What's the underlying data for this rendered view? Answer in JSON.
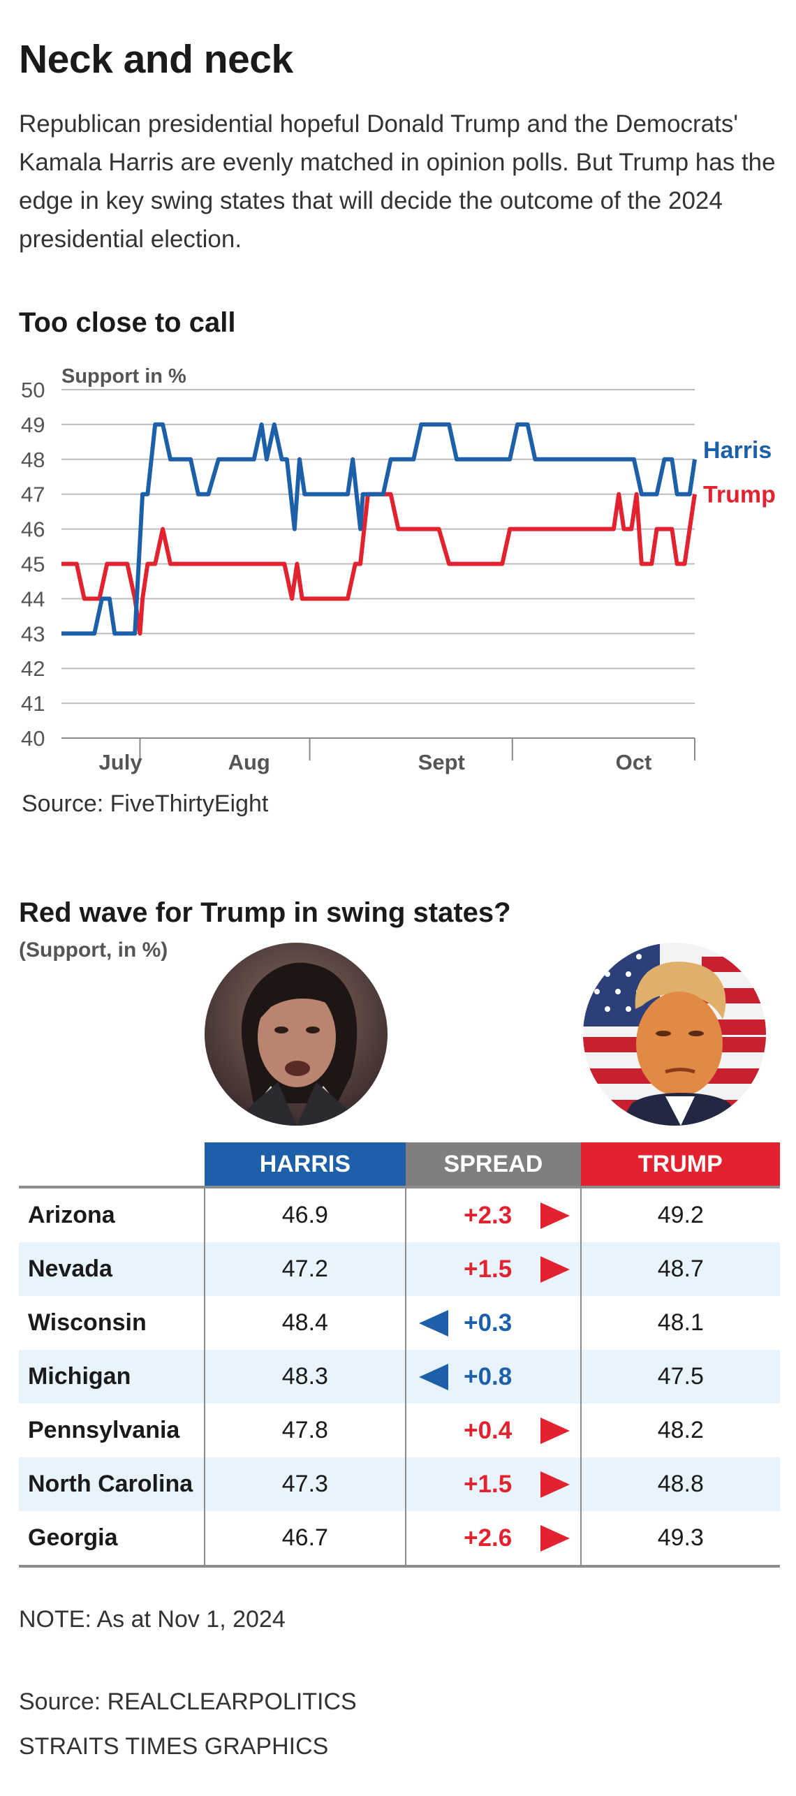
{
  "title": "Neck and neck",
  "dek": "Republican presidential hopeful Donald Trump and the Democrats' Kamala Harris are evenly matched in opinion polls. But Trump has the edge in key swing states that will decide the outcome of the 2024 presidential election.",
  "colors": {
    "harris": "#1d5fa8",
    "trump": "#e3222f",
    "spread": "#7f7f7f",
    "grid": "#bdbdbd",
    "alt_row": "#e9f3fb"
  },
  "chart_data": [
    {
      "type": "line",
      "title": "Too close to call",
      "ylabel": "Support in %",
      "xlabel": "",
      "ylim": [
        40,
        50
      ],
      "yticks": [
        "50",
        "49",
        "48",
        "47",
        "46",
        "45",
        "44",
        "43",
        "42",
        "41",
        "40"
      ],
      "xlim": [
        0,
        25
      ],
      "x_ticks": [
        3.1,
        9.8,
        17.8
      ],
      "x_labels": [
        {
          "label": "July",
          "x": 1.2
        },
        {
          "label": "Aug",
          "x": 6.3
        },
        {
          "label": "Sept",
          "x": 13.8
        },
        {
          "label": "Oct",
          "x": 21.6
        }
      ],
      "grid": true,
      "series": [
        {
          "name": "Harris",
          "label": "Harris",
          "points": [
            [
              0,
              43
            ],
            [
              1.3,
              43
            ],
            [
              1.6,
              44
            ],
            [
              1.9,
              44
            ],
            [
              2.1,
              43
            ],
            [
              2.9,
              43
            ],
            [
              3.2,
              47
            ],
            [
              3.4,
              47
            ],
            [
              3.7,
              49
            ],
            [
              4.0,
              49
            ],
            [
              4.3,
              48
            ],
            [
              5.1,
              48
            ],
            [
              5.4,
              47
            ],
            [
              5.8,
              47
            ],
            [
              6.2,
              48
            ],
            [
              7.6,
              48
            ],
            [
              7.9,
              49
            ],
            [
              8.1,
              48
            ],
            [
              8.4,
              49
            ],
            [
              8.7,
              48
            ],
            [
              8.9,
              48
            ],
            [
              9.2,
              46
            ],
            [
              9.4,
              48
            ],
            [
              9.6,
              47
            ],
            [
              11.3,
              47
            ],
            [
              11.5,
              48
            ],
            [
              11.8,
              46
            ],
            [
              11.9,
              47
            ],
            [
              12.7,
              47
            ],
            [
              13.0,
              48
            ],
            [
              13.9,
              48
            ],
            [
              14.2,
              49
            ],
            [
              15.3,
              49
            ],
            [
              15.6,
              48
            ],
            [
              17.7,
              48
            ],
            [
              18.0,
              49
            ],
            [
              18.4,
              49
            ],
            [
              18.7,
              48
            ],
            [
              22.6,
              48
            ],
            [
              22.9,
              47
            ],
            [
              23.5,
              47
            ],
            [
              23.8,
              48
            ],
            [
              24.1,
              48
            ],
            [
              24.3,
              47
            ],
            [
              24.8,
              47
            ],
            [
              25.0,
              48
            ]
          ]
        },
        {
          "name": "Trump",
          "label": "Trump",
          "points": [
            [
              0,
              45
            ],
            [
              0.6,
              45
            ],
            [
              0.9,
              44
            ],
            [
              1.5,
              44
            ],
            [
              1.8,
              45
            ],
            [
              2.6,
              45
            ],
            [
              2.9,
              44
            ],
            [
              3.1,
              43
            ],
            [
              3.2,
              44
            ],
            [
              3.4,
              45
            ],
            [
              3.7,
              45
            ],
            [
              4.0,
              46
            ],
            [
              4.3,
              45
            ],
            [
              8.8,
              45
            ],
            [
              9.1,
              44
            ],
            [
              9.3,
              45
            ],
            [
              9.5,
              44
            ],
            [
              11.3,
              44
            ],
            [
              11.6,
              45
            ],
            [
              11.8,
              45
            ],
            [
              12.1,
              47
            ],
            [
              13.0,
              47
            ],
            [
              13.3,
              46
            ],
            [
              14.9,
              46
            ],
            [
              15.3,
              45
            ],
            [
              17.4,
              45
            ],
            [
              17.7,
              46
            ],
            [
              21.8,
              46
            ],
            [
              22.0,
              47
            ],
            [
              22.2,
              46
            ],
            [
              22.5,
              46
            ],
            [
              22.7,
              47
            ],
            [
              22.9,
              45
            ],
            [
              23.3,
              45
            ],
            [
              23.5,
              46
            ],
            [
              24.1,
              46
            ],
            [
              24.3,
              45
            ],
            [
              24.6,
              45
            ],
            [
              24.8,
              46
            ],
            [
              25.0,
              47
            ]
          ]
        }
      ]
    },
    {
      "type": "table",
      "title": "Red wave for Trump in swing states?",
      "subtitle": "(Support, in %)",
      "columns": [
        "",
        "HARRIS",
        "SPREAD",
        "TRUMP"
      ],
      "rows": [
        {
          "state": "Arizona",
          "harris": "46.9",
          "spread": "+2.3",
          "leader": "trump",
          "trump": "49.2"
        },
        {
          "state": "Nevada",
          "harris": "47.2",
          "spread": "+1.5",
          "leader": "trump",
          "trump": "48.7"
        },
        {
          "state": "Wisconsin",
          "harris": "48.4",
          "spread": "+0.3",
          "leader": "harris",
          "trump": "48.1"
        },
        {
          "state": "Michigan",
          "harris": "48.3",
          "spread": "+0.8",
          "leader": "harris",
          "trump": "47.5"
        },
        {
          "state": "Pennsylvania",
          "harris": "47.8",
          "spread": "+0.4",
          "leader": "trump",
          "trump": "48.2"
        },
        {
          "state": "North Carolina",
          "harris": "47.3",
          "spread": "+1.5",
          "leader": "trump",
          "trump": "48.8"
        },
        {
          "state": "Georgia",
          "harris": "46.7",
          "spread": "+2.6",
          "leader": "trump",
          "trump": "49.3"
        }
      ]
    }
  ],
  "chart_source": "Source: FiveThirtyEight",
  "note": "NOTE: As at Nov 1, 2024",
  "table_source": "Source: REALCLEARPOLITICS",
  "credit": "STRAITS TIMES GRAPHICS"
}
